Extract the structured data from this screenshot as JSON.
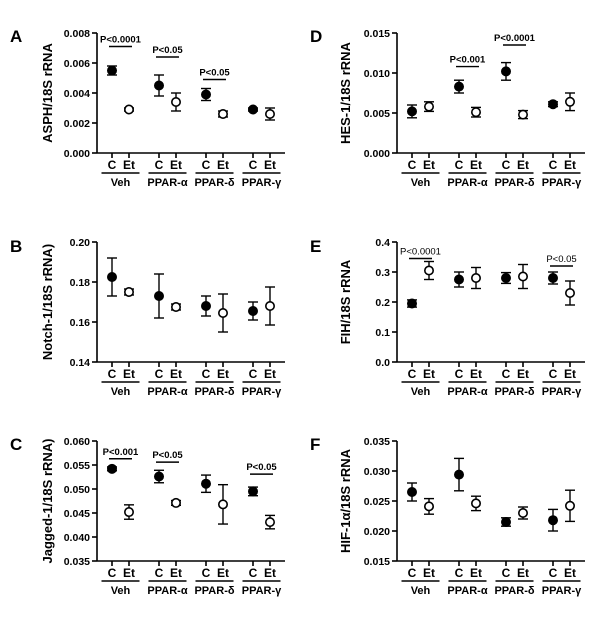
{
  "chart_data": [
    {
      "panel": "A",
      "type": "scatter",
      "ylabel": "ASPH/18S rRNA",
      "ylim": [
        0,
        0.008
      ],
      "yticks": [
        "0.000",
        "0.002",
        "0.004",
        "0.006",
        "0.008"
      ],
      "groups": [
        "Veh",
        "PPAR-α",
        "PPAR-δ",
        "PPAR-γ"
      ],
      "conditions": [
        "C",
        "Et"
      ],
      "series": [
        {
          "name": "C",
          "marker": "filled",
          "mean": [
            0.0055,
            0.0045,
            0.0039,
            0.0029
          ],
          "err": [
            0.0003,
            0.0007,
            0.0004,
            0.0001
          ]
        },
        {
          "name": "Et",
          "marker": "open",
          "mean": [
            0.0029,
            0.0034,
            0.0026,
            0.0026
          ],
          "err": [
            0.0001,
            0.0006,
            0.0002,
            0.0004
          ]
        }
      ],
      "annotations": [
        {
          "group": 0,
          "text": "P<0.0001",
          "y": 0.0071
        },
        {
          "group": 1,
          "text": "P<0.05",
          "y": 0.0064
        },
        {
          "group": 2,
          "text": "P<0.05",
          "y": 0.0049
        }
      ]
    },
    {
      "panel": "B",
      "type": "scatter",
      "ylabel": "Notch-1/18S rRNA)",
      "ylim": [
        0.14,
        0.2
      ],
      "yticks": [
        "0.14",
        "0.16",
        "0.18",
        "0.20"
      ],
      "groups": [
        "Veh",
        "PPAR-α",
        "PPAR-δ",
        "PPAR-γ"
      ],
      "conditions": [
        "C",
        "Et"
      ],
      "series": [
        {
          "name": "C",
          "marker": "filled",
          "mean": [
            0.1825,
            0.173,
            0.168,
            0.1655
          ],
          "err": [
            0.0095,
            0.011,
            0.005,
            0.0045
          ]
        },
        {
          "name": "Et",
          "marker": "open",
          "mean": [
            0.175,
            0.1675,
            0.1645,
            0.168
          ],
          "err": [
            0.0015,
            0.0015,
            0.0095,
            0.0095
          ]
        }
      ],
      "annotations": []
    },
    {
      "panel": "C",
      "type": "scatter",
      "ylabel": "Jagged-1/18S rRNA)",
      "ylim": [
        0.035,
        0.06
      ],
      "yticks": [
        "0.035",
        "0.040",
        "0.045",
        "0.050",
        "0.055",
        "0.060"
      ],
      "groups": [
        "Veh",
        "PPAR-α",
        "PPAR-δ",
        "PPAR-γ"
      ],
      "conditions": [
        "C",
        "Et"
      ],
      "series": [
        {
          "name": "C",
          "marker": "filled",
          "mean": [
            0.0542,
            0.0526,
            0.0511,
            0.0495
          ],
          "err": [
            0.0004,
            0.0013,
            0.0018,
            0.0009
          ]
        },
        {
          "name": "Et",
          "marker": "open",
          "mean": [
            0.0452,
            0.0471,
            0.0468,
            0.0431
          ],
          "err": [
            0.0015,
            0.0005,
            0.0041,
            0.0014
          ]
        }
      ],
      "annotations": [
        {
          "group": 0,
          "text": "P<0.001",
          "y": 0.0563
        },
        {
          "group": 1,
          "text": "P<0.05",
          "y": 0.0556
        },
        {
          "group": 3,
          "text": "P<0.05",
          "y": 0.0531
        }
      ]
    },
    {
      "panel": "D",
      "type": "scatter",
      "ylabel": "HES-1/18S rRNA",
      "ylim": [
        0,
        0.015
      ],
      "yticks": [
        "0.000",
        "0.005",
        "0.010",
        "0.015"
      ],
      "groups": [
        "Veh",
        "PPAR-α",
        "PPAR-δ",
        "PPAR-γ"
      ],
      "conditions": [
        "C",
        "Et"
      ],
      "series": [
        {
          "name": "C",
          "marker": "filled",
          "mean": [
            0.0052,
            0.0083,
            0.0102,
            0.0061
          ],
          "err": [
            0.0008,
            0.0008,
            0.0011,
            0.0003
          ]
        },
        {
          "name": "Et",
          "marker": "open",
          "mean": [
            0.0058,
            0.0051,
            0.0048,
            0.0064
          ],
          "err": [
            0.0006,
            0.0006,
            0.0005,
            0.0011
          ]
        }
      ],
      "annotations": [
        {
          "group": 1,
          "text": "P<0.001",
          "y": 0.0108
        },
        {
          "group": 2,
          "text": "P<0.0001",
          "y": 0.0135
        }
      ]
    },
    {
      "panel": "E",
      "type": "scatter",
      "ylabel": "FIH/18S rRNA",
      "ylim": [
        0,
        0.4
      ],
      "yticks": [
        "0.0",
        "0.1",
        "0.2",
        "0.3",
        "0.4"
      ],
      "groups": [
        "Veh",
        "PPAR-α",
        "PPAR-δ",
        "PPAR-γ"
      ],
      "conditions": [
        "C",
        "Et"
      ],
      "series": [
        {
          "name": "C",
          "marker": "filled",
          "mean": [
            0.195,
            0.275,
            0.28,
            0.28
          ],
          "err": [
            0.012,
            0.025,
            0.018,
            0.02
          ]
        },
        {
          "name": "Et",
          "marker": "open",
          "mean": [
            0.305,
            0.28,
            0.285,
            0.23
          ],
          "err": [
            0.03,
            0.035,
            0.04,
            0.04
          ]
        }
      ],
      "annotations": [
        {
          "group": 0,
          "text": "P<0.0001",
          "y": 0.345
        },
        {
          "group": 3,
          "text": "P<0.05",
          "y": 0.32
        }
      ]
    },
    {
      "panel": "F",
      "type": "scatter",
      "ylabel": "HIF-1α/18S rRNA",
      "ylim": [
        0.015,
        0.035
      ],
      "yticks": [
        "0.015",
        "0.020",
        "0.025",
        "0.030",
        "0.035"
      ],
      "groups": [
        "Veh",
        "PPAR-α",
        "PPAR-δ",
        "PPAR-γ"
      ],
      "conditions": [
        "C",
        "Et"
      ],
      "series": [
        {
          "name": "C",
          "marker": "filled",
          "mean": [
            0.0265,
            0.0294,
            0.0215,
            0.0218
          ],
          "err": [
            0.0015,
            0.0027,
            0.0007,
            0.0018
          ]
        },
        {
          "name": "Et",
          "marker": "open",
          "mean": [
            0.0241,
            0.0246,
            0.023,
            0.0242
          ],
          "err": [
            0.0013,
            0.0012,
            0.001,
            0.0026
          ]
        }
      ],
      "annotations": []
    }
  ]
}
